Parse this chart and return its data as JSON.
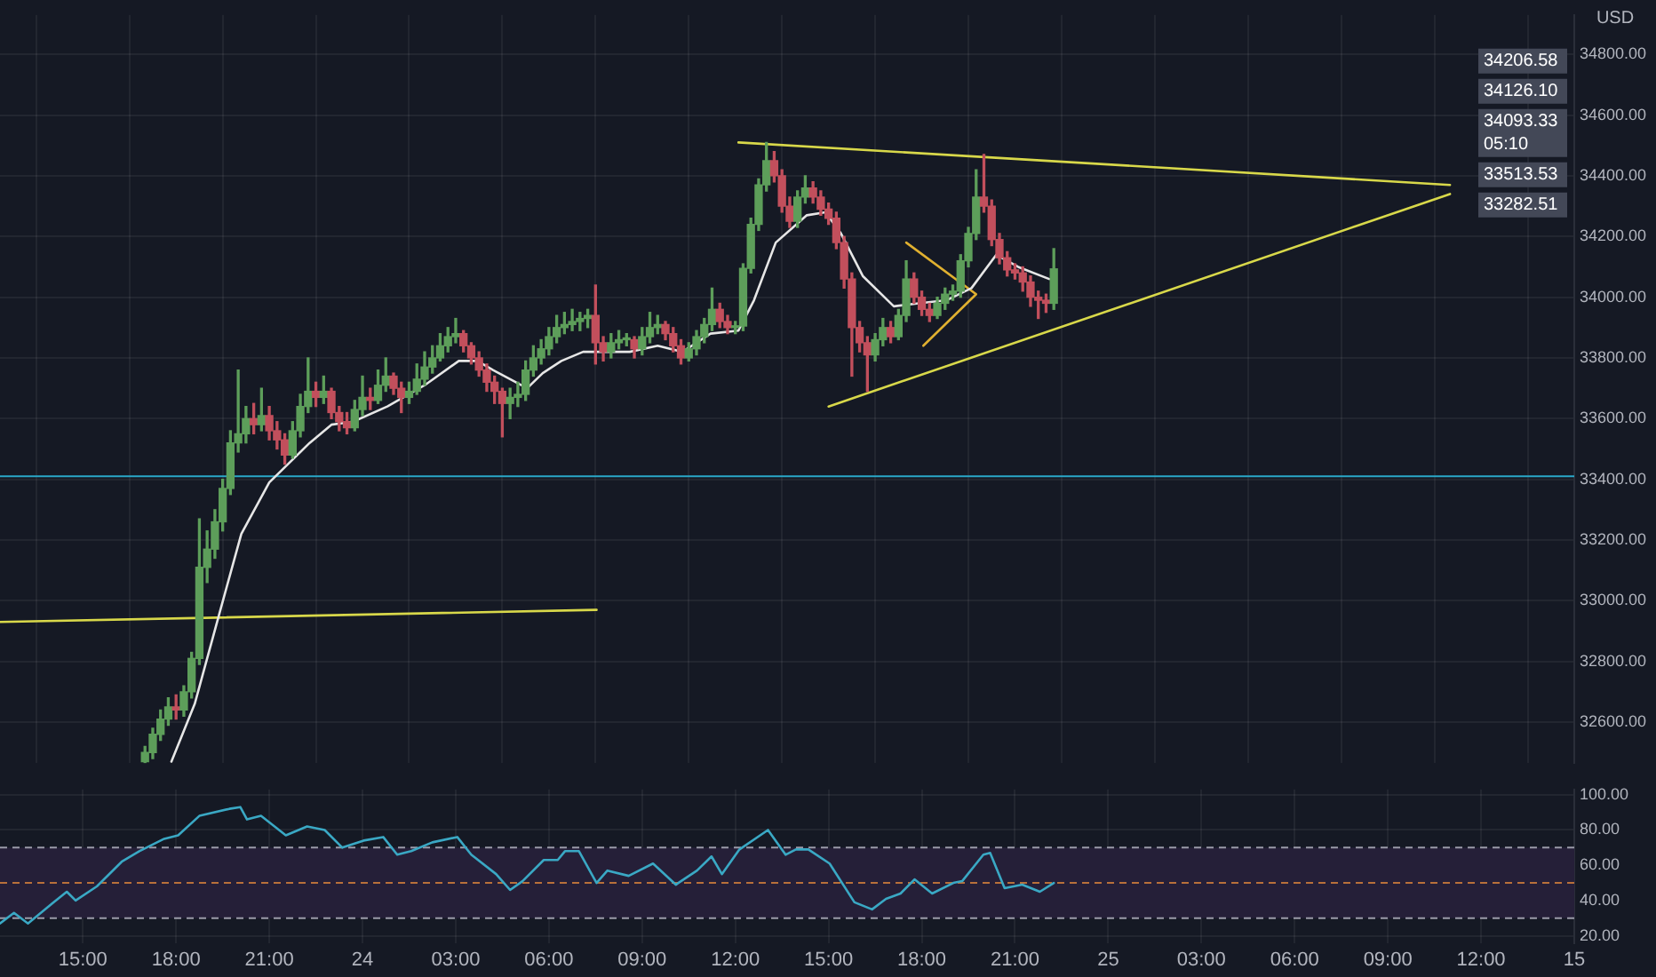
{
  "chart_data": [
    {
      "type": "candlestick",
      "ylabel": "USD",
      "tick_labels": "y",
      "grid": true,
      "legend": false,
      "xlim": [
        "--07-23T12:20",
        "--07-25T15:00"
      ],
      "xticks": [
        {
          "value": "--07-23T15:00",
          "label": null
        },
        {
          "value": "--07-23T18:00",
          "label": null
        },
        {
          "value": "--07-23T21:00",
          "label": null
        },
        {
          "value": "--07-24T00:00",
          "label": null
        },
        {
          "value": "--07-24T03:00",
          "label": null
        },
        {
          "value": "--07-24T06:00",
          "label": null
        },
        {
          "value": "--07-24T09:00",
          "label": null
        },
        {
          "value": "--07-24T12:00",
          "label": null
        },
        {
          "value": "--07-24T15:00",
          "label": null
        },
        {
          "value": "--07-24T18:00",
          "label": null
        },
        {
          "value": "--07-24T21:00",
          "label": null
        },
        {
          "value": "--07-25T00:00",
          "label": null
        },
        {
          "value": "--07-25T03:00",
          "label": null
        },
        {
          "value": "--07-25T06:00",
          "label": null
        },
        {
          "value": "--07-25T09:00",
          "label": null
        },
        {
          "value": "--07-25T12:00",
          "label": null
        },
        {
          "value": "--07-25T15:00",
          "label": null
        }
      ],
      "ylim": [
        32465,
        34930
      ],
      "yticks": [
        {
          "value": 32600,
          "label": "32600.00"
        },
        {
          "value": 32800,
          "label": "32800.00"
        },
        {
          "value": 33000,
          "label": "33000.00"
        },
        {
          "value": 33200,
          "label": "33200.00"
        },
        {
          "value": 33400,
          "label": "33400.00"
        },
        {
          "value": 33600,
          "label": "33600.00"
        },
        {
          "value": 33800,
          "label": "33800.00"
        },
        {
          "value": 34000,
          "label": "34000.00"
        },
        {
          "value": 34200,
          "label": "34200.00"
        },
        {
          "value": 34400,
          "label": "34400.00"
        },
        {
          "value": 34600,
          "label": "34600.00"
        },
        {
          "value": 34800,
          "label": "34800.00"
        }
      ],
      "x": [
        "--07-23T17:00",
        "--07-23T17:15",
        "--07-23T17:30",
        "--07-23T17:45",
        "--07-23T18:00",
        "--07-23T18:15",
        "--07-23T18:30",
        "--07-23T18:45",
        "--07-23T19:00",
        "--07-23T19:15",
        "--07-23T19:30",
        "--07-23T19:45",
        "--07-23T20:00",
        "--07-23T20:15",
        "--07-23T20:30",
        "--07-23T20:45",
        "--07-23T21:00",
        "--07-23T21:15",
        "--07-23T21:30",
        "--07-23T21:45",
        "--07-23T22:00",
        "--07-23T22:15",
        "--07-23T22:30",
        "--07-23T22:45",
        "--07-23T23:00",
        "--07-23T23:15",
        "--07-23T23:30",
        "--07-23T23:45",
        "--07-24T00:00",
        "--07-24T00:15",
        "--07-24T00:30",
        "--07-24T00:45",
        "--07-24T01:00",
        "--07-24T01:15",
        "--07-24T01:30",
        "--07-24T01:45",
        "--07-24T02:00",
        "--07-24T02:15",
        "--07-24T02:30",
        "--07-24T02:45",
        "--07-24T03:00",
        "--07-24T03:15",
        "--07-24T03:30",
        "--07-24T03:45",
        "--07-24T04:00",
        "--07-24T04:15",
        "--07-24T04:30",
        "--07-24T04:45",
        "--07-24T05:00",
        "--07-24T05:15",
        "--07-24T05:30",
        "--07-24T05:45",
        "--07-24T06:00",
        "--07-24T06:15",
        "--07-24T06:30",
        "--07-24T06:45",
        "--07-24T07:00",
        "--07-24T07:15",
        "--07-24T07:30",
        "--07-24T07:45",
        "--07-24T08:00",
        "--07-24T08:15",
        "--07-24T08:30",
        "--07-24T08:45",
        "--07-24T09:00",
        "--07-24T09:15",
        "--07-24T09:30",
        "--07-24T09:45",
        "--07-24T10:00",
        "--07-24T10:15",
        "--07-24T10:30",
        "--07-24T10:45",
        "--07-24T11:00",
        "--07-24T11:15",
        "--07-24T11:30",
        "--07-24T11:45",
        "--07-24T12:00",
        "--07-24T12:15",
        "--07-24T12:30",
        "--07-24T12:45",
        "--07-24T13:00",
        "--07-24T13:15",
        "--07-24T13:30",
        "--07-24T13:45",
        "--07-24T14:00",
        "--07-24T14:15",
        "--07-24T14:30",
        "--07-24T14:45",
        "--07-24T15:00",
        "--07-24T15:15",
        "--07-24T15:30",
        "--07-24T15:45",
        "--07-24T16:00",
        "--07-24T16:15",
        "--07-24T16:30",
        "--07-24T16:45",
        "--07-24T17:00",
        "--07-24T17:15",
        "--07-24T17:30",
        "--07-24T17:45",
        "--07-24T18:00",
        "--07-24T18:15",
        "--07-24T18:30",
        "--07-24T18:45",
        "--07-24T19:00",
        "--07-24T19:15",
        "--07-24T19:30",
        "--07-24T19:45",
        "--07-24T20:00",
        "--07-24T20:15",
        "--07-24T20:30",
        "--07-24T20:45",
        "--07-24T21:00",
        "--07-24T21:15",
        "--07-24T21:30",
        "--07-24T21:45",
        "--07-24T22:00",
        "--07-24T22:15"
      ],
      "ohlc": [
        [
          32470,
          32520,
          32466,
          32500
        ],
        [
          32500,
          32580,
          32480,
          32560
        ],
        [
          32560,
          32640,
          32540,
          32610
        ],
        [
          32610,
          32680,
          32590,
          32650
        ],
        [
          32650,
          32690,
          32610,
          32640
        ],
        [
          32640,
          32720,
          32620,
          32700
        ],
        [
          32700,
          32830,
          32680,
          32810
        ],
        [
          32810,
          33270,
          32790,
          33110
        ],
        [
          33110,
          33230,
          33060,
          33170
        ],
        [
          33170,
          33300,
          33140,
          33260
        ],
        [
          33260,
          33400,
          33230,
          33370
        ],
        [
          33370,
          33560,
          33350,
          33520
        ],
        [
          33520,
          33760,
          33490,
          33550
        ],
        [
          33550,
          33640,
          33520,
          33600
        ],
        [
          33600,
          33650,
          33550,
          33580
        ],
        [
          33580,
          33700,
          33560,
          33610
        ],
        [
          33610,
          33640,
          33530,
          33560
        ],
        [
          33560,
          33590,
          33500,
          33530
        ],
        [
          33530,
          33550,
          33450,
          33480
        ],
        [
          33480,
          33590,
          33470,
          33560
        ],
        [
          33560,
          33680,
          33540,
          33640
        ],
        [
          33640,
          33800,
          33620,
          33690
        ],
        [
          33690,
          33720,
          33640,
          33670
        ],
        [
          33670,
          33740,
          33650,
          33690
        ],
        [
          33690,
          33700,
          33600,
          33620
        ],
        [
          33620,
          33640,
          33560,
          33590
        ],
        [
          33590,
          33620,
          33550,
          33570
        ],
        [
          33570,
          33660,
          33560,
          33630
        ],
        [
          33630,
          33740,
          33610,
          33670
        ],
        [
          33670,
          33700,
          33630,
          33660
        ],
        [
          33660,
          33760,
          33650,
          33710
        ],
        [
          33710,
          33800,
          33690,
          33740
        ],
        [
          33740,
          33750,
          33680,
          33700
        ],
        [
          33700,
          33720,
          33620,
          33670
        ],
        [
          33670,
          33720,
          33650,
          33690
        ],
        [
          33690,
          33780,
          33680,
          33730
        ],
        [
          33730,
          33820,
          33710,
          33770
        ],
        [
          33770,
          33840,
          33750,
          33800
        ],
        [
          33800,
          33880,
          33790,
          33840
        ],
        [
          33840,
          33900,
          33820,
          33870
        ],
        [
          33870,
          33930,
          33850,
          33880
        ],
        [
          33880,
          33890,
          33820,
          33840
        ],
        [
          33840,
          33850,
          33780,
          33800
        ],
        [
          33800,
          33820,
          33740,
          33760
        ],
        [
          33760,
          33780,
          33690,
          33720
        ],
        [
          33720,
          33740,
          33650,
          33690
        ],
        [
          33690,
          33700,
          33540,
          33650
        ],
        [
          33650,
          33700,
          33600,
          33670
        ],
        [
          33670,
          33720,
          33640,
          33680
        ],
        [
          33680,
          33790,
          33660,
          33760
        ],
        [
          33760,
          33840,
          33740,
          33800
        ],
        [
          33800,
          33860,
          33780,
          33830
        ],
        [
          33830,
          33900,
          33810,
          33870
        ],
        [
          33870,
          33940,
          33850,
          33900
        ],
        [
          33900,
          33950,
          33880,
          33910
        ],
        [
          33910,
          33960,
          33890,
          33920
        ],
        [
          33920,
          33950,
          33890,
          33930
        ],
        [
          33930,
          33960,
          33900,
          33940
        ],
        [
          33940,
          34040,
          33780,
          33850
        ],
        [
          33850,
          33870,
          33790,
          33820
        ],
        [
          33820,
          33880,
          33800,
          33850
        ],
        [
          33850,
          33890,
          33830,
          33860
        ],
        [
          33860,
          33880,
          33840,
          33860
        ],
        [
          33860,
          33870,
          33800,
          33830
        ],
        [
          33830,
          33900,
          33810,
          33870
        ],
        [
          33870,
          33950,
          33850,
          33900
        ],
        [
          33900,
          33940,
          33880,
          33910
        ],
        [
          33910,
          33920,
          33860,
          33880
        ],
        [
          33880,
          33900,
          33820,
          33840
        ],
        [
          33840,
          33860,
          33780,
          33800
        ],
        [
          33800,
          33850,
          33790,
          33830
        ],
        [
          33830,
          33890,
          33810,
          33870
        ],
        [
          33870,
          33930,
          33850,
          33910
        ],
        [
          33910,
          34030,
          33890,
          33960
        ],
        [
          33960,
          33980,
          33900,
          33920
        ],
        [
          33920,
          33940,
          33880,
          33900
        ],
        [
          33900,
          33920,
          33880,
          33905
        ],
        [
          33905,
          34110,
          33890,
          34095
        ],
        [
          34095,
          34260,
          34080,
          34240
        ],
        [
          34240,
          34390,
          34220,
          34370
        ],
        [
          34370,
          34510,
          34350,
          34450
        ],
        [
          34450,
          34480,
          34380,
          34400
        ],
        [
          34400,
          34420,
          34280,
          34300
        ],
        [
          34300,
          34330,
          34230,
          34250
        ],
        [
          34250,
          34350,
          34230,
          34330
        ],
        [
          34330,
          34400,
          34310,
          34360
        ],
        [
          34360,
          34380,
          34310,
          34330
        ],
        [
          34330,
          34350,
          34270,
          34290
        ],
        [
          34290,
          34310,
          34240,
          34260
        ],
        [
          34260,
          34280,
          34160,
          34180
        ],
        [
          34180,
          34200,
          34030,
          34060
        ],
        [
          34060,
          34080,
          33740,
          33900
        ],
        [
          33900,
          33920,
          33820,
          33850
        ],
        [
          33850,
          33870,
          33690,
          33810
        ],
        [
          33810,
          33880,
          33790,
          33860
        ],
        [
          33860,
          33930,
          33840,
          33900
        ],
        [
          33900,
          33920,
          33850,
          33870
        ],
        [
          33870,
          33960,
          33860,
          33940
        ],
        [
          33940,
          34120,
          33920,
          34060
        ],
        [
          34060,
          34080,
          33980,
          34000
        ],
        [
          34000,
          34020,
          33940,
          33960
        ],
        [
          33960,
          33980,
          33920,
          33940
        ],
        [
          33940,
          34000,
          33930,
          33980
        ],
        [
          33980,
          34030,
          33960,
          34010
        ],
        [
          34010,
          34040,
          33990,
          34020
        ],
        [
          34020,
          34140,
          34000,
          34120
        ],
        [
          34120,
          34230,
          34100,
          34210
        ],
        [
          34210,
          34420,
          34190,
          34330
        ],
        [
          34330,
          34470,
          34280,
          34300
        ],
        [
          34300,
          34320,
          34170,
          34190
        ],
        [
          34190,
          34210,
          34110,
          34130
        ],
        [
          34130,
          34150,
          34070,
          34090
        ],
        [
          34090,
          34110,
          34060,
          34080
        ],
        [
          34080,
          34100,
          34020,
          34050
        ],
        [
          34050,
          34070,
          33970,
          34000
        ],
        [
          34000,
          34020,
          33930,
          33990
        ],
        [
          33990,
          34010,
          33950,
          33980
        ],
        [
          33980,
          34160,
          33960,
          34093.33
        ]
      ],
      "series": [
        {
          "type": "line",
          "color": "#e6e6e6",
          "x": [
            "--07-23T17:51",
            "--07-23T18:36",
            "--07-23T19:24",
            "--07-23T20:06",
            "--07-23T21:00",
            "--07-23T21:36",
            "--07-23T22:18",
            "--07-23T23:00",
            "--07-23T23:42",
            "--07-24T00:48",
            "--07-24T02:00",
            "--07-24T03:06",
            "--07-24T03:42",
            "--07-24T04:12",
            "--07-24T05:18",
            "--07-24T05:48",
            "--07-24T06:24",
            "--07-24T07:06",
            "--07-24T07:36",
            "--07-24T08:36",
            "--07-24T09:30",
            "--07-24T10:18",
            "--07-24T11:12",
            "--07-24T12:06",
            "--07-24T12:36",
            "--07-24T13:18",
            "--07-24T14:18",
            "--07-24T14:54",
            "--07-24T15:24",
            "--07-24T16:06",
            "--07-24T17:06",
            "--07-24T17:54",
            "--07-24T18:48",
            "--07-24T19:36",
            "--07-24T20:24",
            "--07-24T21:06",
            "--07-24T22:06"
          ],
          "values": [
            32470,
            32660,
            32960,
            33220,
            33390,
            33450,
            33520,
            33580,
            33590,
            33640,
            33710,
            33790,
            33790,
            33760,
            33700,
            33750,
            33790,
            33820,
            33820,
            33820,
            33840,
            33820,
            33880,
            33890,
            33990,
            34180,
            34270,
            34280,
            34210,
            34070,
            33970,
            33980,
            33990,
            34030,
            34140,
            34100,
            34060
          ]
        },
        {
          "type": "line",
          "color": "#d8d84a",
          "x": [
            "--07-24T12:06",
            "--07-25T11:00"
          ],
          "values": [
            34510,
            34370
          ]
        },
        {
          "type": "line",
          "color": "#d8d84a",
          "x": [
            "--07-24T15:00",
            "--07-25T11:00"
          ],
          "values": [
            33640,
            34340
          ]
        },
        {
          "type": "line",
          "color": "#d8d84a",
          "x": [
            "--07-23T12:20",
            "--07-24T07:32"
          ],
          "values": [
            32930,
            32970
          ]
        },
        {
          "type": "line",
          "color": "#e0b030",
          "x": [
            "--07-24T17:30",
            "--07-24T19:45",
            "--07-24T18:03"
          ],
          "values": [
            34180,
            34010,
            33840
          ]
        }
      ],
      "ref_lines": [
        {
          "axis": "y",
          "value": 33410,
          "color": "#2aa8c8"
        }
      ],
      "annotations": [
        "34206.58",
        "34126.10",
        "34093.33\n05:10",
        "33513.53",
        "33282.51"
      ]
    },
    {
      "type": "line",
      "color": "#3aa8c4",
      "grid": true,
      "legend": false,
      "xlim": [
        "--07-23T12:20",
        "--07-25T15:00"
      ],
      "xticks": [
        {
          "value": "--07-23T15:00",
          "label": "15:00"
        },
        {
          "value": "--07-23T18:00",
          "label": "18:00"
        },
        {
          "value": "--07-23T21:00",
          "label": "21:00"
        },
        {
          "value": "--07-24T00:00",
          "label": "24"
        },
        {
          "value": "--07-24T03:00",
          "label": "03:00"
        },
        {
          "value": "--07-24T06:00",
          "label": "06:00"
        },
        {
          "value": "--07-24T09:00",
          "label": "09:00"
        },
        {
          "value": "--07-24T12:00",
          "label": "12:00"
        },
        {
          "value": "--07-24T15:00",
          "label": "15:00"
        },
        {
          "value": "--07-24T18:00",
          "label": "18:00"
        },
        {
          "value": "--07-24T21:00",
          "label": "21:00"
        },
        {
          "value": "--07-25T00:00",
          "label": "25"
        },
        {
          "value": "--07-25T03:00",
          "label": "03:00"
        },
        {
          "value": "--07-25T06:00",
          "label": "06:00"
        },
        {
          "value": "--07-25T09:00",
          "label": "09:00"
        },
        {
          "value": "--07-25T12:00",
          "label": "12:00"
        },
        {
          "value": "--07-25T15:00",
          "label": "15"
        }
      ],
      "ylim": [
        16,
        103
      ],
      "yticks": [
        {
          "value": 20,
          "label": "20.00"
        },
        {
          "value": 40,
          "label": "40.00"
        },
        {
          "value": 60,
          "label": "60.00"
        },
        {
          "value": 80,
          "label": "80.00"
        },
        {
          "value": 100,
          "label": "100.00"
        }
      ],
      "x": [
        "--07-23T12:20",
        "--07-23T12:47",
        "--07-23T13:14",
        "--07-23T13:55",
        "--07-23T14:29",
        "--07-23T14:46",
        "--07-23T15:27",
        "--07-23T16:15",
        "--07-23T16:49",
        "--07-23T17:37",
        "--07-23T18:04",
        "--07-23T18:45",
        "--07-23T19:43",
        "--07-23T20:04",
        "--07-23T20:17",
        "--07-23T20:44",
        "--07-23T21:32",
        "--07-23T22:13",
        "--07-23T22:47",
        "--07-23T23:21",
        "--07-24T00:02",
        "--07-24T00:40",
        "--07-24T01:07",
        "--07-24T01:34",
        "--07-24T02:15",
        "--07-24T03:03",
        "--07-24T03:30",
        "--07-24T04:18",
        "--07-24T04:45",
        "--07-24T05:09",
        "--07-24T05:50",
        "--07-24T06:17",
        "--07-24T06:31",
        "--07-24T06:58",
        "--07-24T07:32",
        "--07-24T07:53",
        "--07-24T08:34",
        "--07-24T09:21",
        "--07-24T10:05",
        "--07-24T10:46",
        "--07-24T11:14",
        "--07-24T11:34",
        "--07-24T12:08",
        "--07-24T13:03",
        "--07-24T13:37",
        "--07-24T13:57",
        "--07-24T14:21",
        "--07-24T15:02",
        "--07-24T15:50",
        "--07-24T16:24",
        "--07-24T16:51",
        "--07-24T17:19",
        "--07-24T17:46",
        "--07-24T18:20",
        "--07-24T19:01",
        "--07-24T19:18",
        "--07-24T19:59",
        "--07-24T20:12",
        "--07-24T20:40",
        "--07-24T21:14",
        "--07-24T21:48",
        "--07-24T22:15"
      ],
      "values": [
        27,
        33,
        27,
        37,
        45,
        40,
        48,
        62,
        68,
        75,
        77,
        88,
        92,
        93,
        86,
        88,
        77,
        82,
        80,
        70,
        74,
        76,
        66,
        68,
        73,
        76,
        66,
        55,
        46,
        51,
        63,
        63,
        68,
        68,
        50,
        57,
        54,
        61,
        49,
        57,
        65,
        55,
        69,
        80,
        66,
        69,
        69,
        61,
        39,
        35,
        41,
        44,
        52,
        44,
        50,
        51,
        66,
        67,
        47,
        49,
        45,
        50
      ],
      "ref_lines": [
        {
          "axis": "y",
          "value": 70,
          "color": "#9a9aa8",
          "line_style": "dashed"
        },
        {
          "axis": "y",
          "value": 50,
          "color": "#b8703a",
          "line_style": "dashed"
        },
        {
          "axis": "y",
          "value": 30,
          "color": "#9a9aa8",
          "line_style": "dashed"
        }
      ],
      "bands": [
        {
          "axis": "y",
          "from": 30,
          "to": 70,
          "color": "#251f38"
        }
      ]
    }
  ]
}
